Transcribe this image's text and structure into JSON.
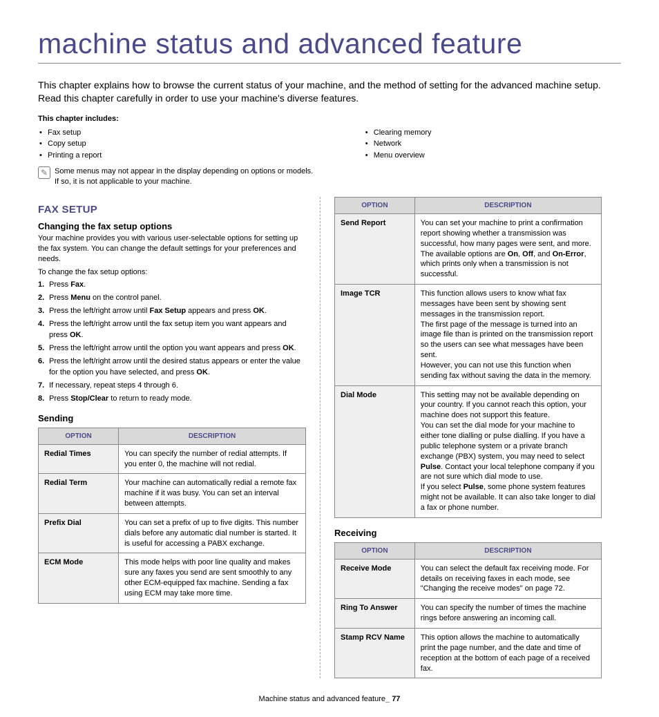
{
  "title": "machine status and advanced feature",
  "intro": "This chapter explains how to browse the current status of your machine, and the method of setting for the advanced machine setup. Read this chapter carefully in order to use your machine's diverse features.",
  "includes_label": "This chapter includes:",
  "toc_left": [
    "Fax setup",
    "Copy setup",
    "Printing a report"
  ],
  "toc_right": [
    "Clearing memory",
    "Network",
    "Menu overview"
  ],
  "note": "Some menus may not appear in the display depending on options or models. If so, it is not applicable to your machine.",
  "left": {
    "section_head": "FAX SETUP",
    "sub1_head": "Changing the fax setup options",
    "sub1_body1": "Your machine provides you with various user-selectable options for setting up the fax system. You can change the default settings for your preferences and needs.",
    "sub1_body2": "To change the fax setup options:",
    "steps": [
      {
        "n": "1.",
        "html": "Press <b>Fax</b>."
      },
      {
        "n": "2.",
        "html": "Press <b>Menu</b> on the control panel."
      },
      {
        "n": "3.",
        "html": "Press the left/right arrow until <b>Fax Setup</b> appears and press <b>OK</b>."
      },
      {
        "n": "4.",
        "html": "Press the left/right arrow until the fax setup item you want appears and press <b>OK</b>."
      },
      {
        "n": "5.",
        "html": "Press the left/right arrow until the option you want appears and press <b>OK</b>."
      },
      {
        "n": "6.",
        "html": "Press the left/right arrow until the desired status appears or enter the value for the option you have selected, and press <b>OK</b>."
      },
      {
        "n": "7.",
        "html": "If necessary, repeat steps 4 through 6."
      },
      {
        "n": "8.",
        "html": "Press <b>Stop/Clear</b> to return to ready mode."
      }
    ],
    "sending_head": "Sending",
    "sending_table": {
      "headers": [
        "Option",
        "Description"
      ],
      "rows": [
        [
          "Redial Times",
          "You can specify the number of redial attempts. If you enter 0, the machine will not redial."
        ],
        [
          "Redial Term",
          "Your machine can automatically redial a remote fax machine if it was busy. You can set an interval between attempts."
        ],
        [
          "Prefix Dial",
          "You can set a prefix of up to five digits. This number dials before any automatic dial number is started. It is useful for accessing a PABX exchange."
        ],
        [
          "ECM Mode",
          "This mode helps with poor line quality and makes sure any faxes you send are sent smoothly to any other ECM-equipped fax machine. Sending a fax using ECM may take more time."
        ]
      ]
    }
  },
  "right": {
    "top_table": {
      "headers": [
        "Option",
        "Description"
      ],
      "rows": [
        [
          "Send Report",
          "You can set your machine to print a confirmation report showing whether a transmission was successful, how many pages were sent, and more. The available options are <b>On</b>, <b>Off</b>, and <b>On-Error</b>, which prints only when a transmission is not successful."
        ],
        [
          "Image TCR",
          "This function allows users to know what fax messages have been sent by showing sent messages in the transmission report.<br>The first page of the message is turned into an image file than is printed on the transmission report so the users can see what messages have been sent.<br>However, you can not use this function when sending fax without saving the data in the memory."
        ],
        [
          "Dial Mode",
          "This setting may not be available depending on your country. If you cannot reach this option, your machine does not support this feature.<br>You can set the dial mode for your machine to either tone dialling or pulse dialling. If you have a public telephone system or a private branch exchange (PBX) system, you may need to select <b>Pulse</b>. Contact your local telephone company if you are not sure which dial mode to use.<br>If you select <b>Pulse</b>, some phone system features might not be available. It can also take longer to dial a fax or phone number."
        ]
      ]
    },
    "receiving_head": "Receiving",
    "receiving_table": {
      "headers": [
        "Option",
        "Description"
      ],
      "rows": [
        [
          "Receive Mode",
          "You can select the default fax receiving mode. For details on receiving faxes in each mode, see \"Changing the receive modes\" on page 72."
        ],
        [
          "Ring To Answer",
          "You can specify the number of times the machine rings before answering an incoming call."
        ],
        [
          "Stamp RCV Name",
          "This option allows the machine to automatically print the page number, and the date and time of reception at the bottom of each page of a received fax."
        ]
      ]
    }
  },
  "footer_text": "Machine status and advanced feature",
  "footer_page": "_ 77"
}
